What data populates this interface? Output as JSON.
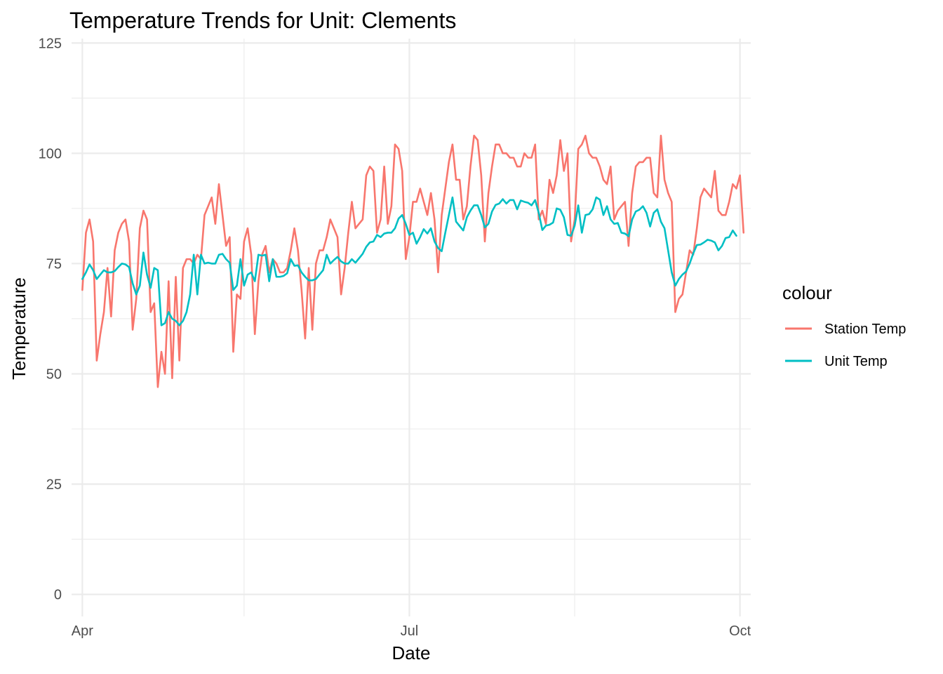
{
  "chart_data": {
    "type": "line",
    "title": "Temperature Trends for Unit: Clements",
    "xlabel": "Date",
    "ylabel": "Temperature",
    "x_range": [
      "2023-03-29",
      "2023-10-04"
    ],
    "x_major_ticks": [
      {
        "date": "2023-04-01",
        "label": "Apr"
      },
      {
        "date": "2023-07-01",
        "label": "Jul"
      },
      {
        "date": "2023-10-01",
        "label": "Oct"
      }
    ],
    "x_minor_ticks": [
      "2023-05-16",
      "2023-08-16"
    ],
    "ylim": [
      -5,
      126
    ],
    "y_major_ticks": [
      0,
      25,
      50,
      75,
      100,
      125
    ],
    "y_minor_ticks": [
      12.5,
      37.5,
      62.5,
      87.5,
      112.5
    ],
    "grid": true,
    "legend": {
      "title": "colour",
      "position": "right",
      "entries": [
        {
          "label": "Station Temp",
          "color": "#F8766D"
        },
        {
          "label": "Unit Temp",
          "color": "#00BFC4"
        }
      ]
    },
    "start_date": "2023-04-01",
    "series": [
      {
        "name": "Station Temp",
        "color": "#F8766D",
        "values": [
          69,
          82,
          85,
          80,
          53,
          59,
          64,
          74,
          63,
          78,
          82,
          84,
          85,
          80,
          60,
          67,
          83,
          87,
          85,
          64,
          66,
          47,
          55,
          50,
          71,
          49,
          72,
          53,
          74,
          76,
          76,
          75,
          77,
          76,
          86,
          88,
          90,
          84,
          93,
          86,
          79,
          81,
          55,
          68,
          67,
          80,
          83,
          77,
          59,
          71,
          77,
          79,
          73,
          76,
          75,
          73,
          73,
          74,
          78,
          83,
          78,
          69,
          58,
          74,
          60,
          75,
          78,
          78,
          81,
          85,
          83,
          81,
          68,
          74,
          82,
          89,
          83,
          84,
          85,
          95,
          97,
          96,
          82,
          85,
          97,
          84,
          88,
          102,
          101,
          96,
          76,
          81,
          89,
          89,
          92,
          89,
          86,
          91,
          85,
          73,
          86,
          92,
          98,
          102,
          94,
          94,
          85,
          88,
          97,
          104,
          103,
          95,
          80,
          91,
          97,
          102,
          102,
          100,
          100,
          99,
          99,
          97,
          97,
          100,
          99,
          99,
          102,
          85,
          87,
          84,
          94,
          91,
          95,
          103,
          96,
          100,
          80,
          85,
          101,
          102,
          104,
          100,
          99,
          99,
          97,
          94,
          93,
          97,
          85,
          87,
          88,
          89,
          79,
          91,
          97,
          98,
          98,
          99,
          99,
          91,
          90,
          104,
          94,
          91,
          89,
          64,
          67,
          68,
          73,
          78,
          77,
          83,
          90,
          92,
          91,
          90,
          96,
          87,
          86,
          86,
          89,
          93,
          92,
          95,
          82
        ]
      },
      {
        "name": "Unit Temp",
        "color": "#00BFC4",
        "values": [
          71.5,
          73,
          74.8,
          73.5,
          71.5,
          72.5,
          73.5,
          73,
          73,
          73.3,
          74.2,
          75,
          74.8,
          74.2,
          70.5,
          68,
          70,
          77.5,
          72.5,
          69.5,
          74,
          73.5,
          61,
          61.5,
          64,
          62.5,
          62,
          61,
          62,
          64,
          68,
          77,
          68,
          77,
          75,
          75.2,
          75,
          75,
          77,
          77.2,
          76,
          75.2,
          69,
          70,
          76,
          70,
          72.5,
          73,
          71,
          77,
          76.8,
          77,
          71,
          76,
          72,
          72,
          72.2,
          72.8,
          76,
          74.5,
          74.6,
          73,
          72,
          71.2,
          71.2,
          71.5,
          72.5,
          73.5,
          77,
          75,
          75.8,
          76.5,
          75.5,
          75,
          75,
          76,
          75.2,
          76.2,
          77.2,
          78.8,
          79.8,
          80,
          81.5,
          81,
          81.8,
          82,
          82,
          83,
          85.2,
          86,
          84,
          81.5,
          82,
          79.5,
          81,
          82.8,
          81.8,
          83,
          80,
          78.5,
          77.8,
          82,
          86,
          90,
          84.5,
          83.5,
          82.5,
          85.5,
          87,
          88.2,
          88.2,
          86,
          83.2,
          84,
          86.8,
          88.3,
          88.6,
          89.6,
          88.6,
          89.4,
          89.4,
          87.3,
          89.3,
          89,
          88.8,
          88.2,
          89.4,
          86.5,
          82.6,
          83.6,
          83.8,
          84.3,
          87.5,
          87.2,
          85.5,
          81.5,
          81.3,
          83.6,
          88.2,
          82,
          86,
          86.2,
          87.3,
          90,
          89.5,
          86,
          88,
          85,
          84,
          84.2,
          82,
          81.8,
          81.2,
          85,
          86.8,
          87.2,
          88,
          86.5,
          83.4,
          86.5,
          87.3,
          84.5,
          83,
          78,
          73,
          70,
          71.5,
          72.5,
          73.2,
          75,
          77.3,
          79.2,
          79.3,
          79.8,
          80.4,
          80.2,
          79.8,
          78,
          79,
          80.8,
          81,
          82.5,
          81.3
        ]
      }
    ]
  }
}
